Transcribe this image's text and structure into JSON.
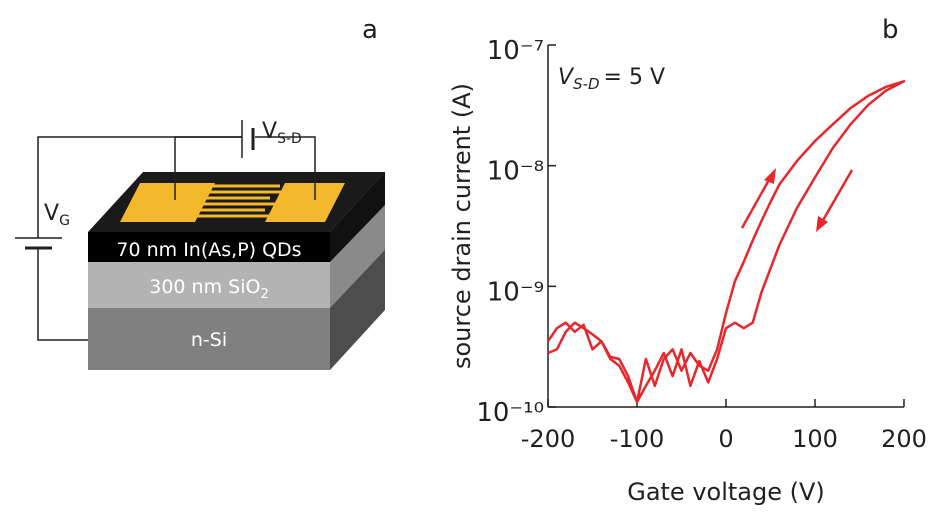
{
  "diagram": {
    "panel_label": "a",
    "vsd": {
      "main": "V",
      "sub": "S-D"
    },
    "vg": {
      "main": "V",
      "sub": "G"
    },
    "layer_qd": "70 nm In(As,P) QDs",
    "layer_oxide": {
      "main": "300 nm SiO",
      "sub": "2"
    },
    "layer_si": "n-Si"
  },
  "chart_data": {
    "type": "line",
    "panel_label": "b",
    "annotation": {
      "main": "V",
      "sub": "S-D",
      "rest": "= 5 V"
    },
    "xlabel": "Gate voltage (V)",
    "ylabel": "source drain current (A)",
    "yscale": "log",
    "color": "#e8262b",
    "xlim": [
      -200,
      200
    ],
    "xticks": [
      -200,
      -100,
      0,
      100,
      200
    ],
    "ylim": [
      1e-10,
      1e-07
    ],
    "yticks": [
      {
        "value": 1e-10,
        "label": "10⁻¹⁰"
      },
      {
        "value": 1e-09,
        "label": "10⁻⁹"
      },
      {
        "value": 1e-08,
        "label": "10⁻⁸"
      },
      {
        "value": 1e-07,
        "label": "10⁻⁷"
      }
    ],
    "x": [
      -200,
      -190,
      -180,
      -170,
      -160,
      -150,
      -140,
      -130,
      -120,
      -110,
      -100,
      -90,
      -80,
      -70,
      -60,
      -50,
      -40,
      -30,
      -20,
      -10,
      0,
      10,
      20,
      30,
      40,
      50,
      60,
      80,
      100,
      120,
      140,
      160,
      180,
      200,
      200,
      180,
      160,
      140,
      120,
      100,
      80,
      60,
      40,
      30,
      20,
      10,
      0,
      -10,
      -20,
      -30,
      -40,
      -50,
      -60,
      -70,
      -80,
      -90,
      -100,
      -110,
      -120,
      -130,
      -140,
      -150,
      -160,
      -170,
      -180,
      -190,
      -200
    ],
    "values": [
      3.5e-10,
      4.5e-10,
      5e-10,
      4.2e-10,
      4.8e-10,
      3e-10,
      3.5e-10,
      2.5e-10,
      2.2e-10,
      1.6e-10,
      1.1e-10,
      2.5e-10,
      1.5e-10,
      2.5e-10,
      3e-10,
      2e-10,
      2.8e-10,
      2.2e-10,
      2e-10,
      3e-10,
      6e-10,
      1.1e-09,
      1.6e-09,
      2.4e-09,
      3.5e-09,
      5e-09,
      7e-09,
      1.1e-08,
      1.6e-08,
      2.2e-08,
      3e-08,
      3.8e-08,
      4.5e-08,
      5e-08,
      5e-08,
      4.2e-08,
      3.2e-08,
      2.2e-08,
      1.4e-08,
      8e-09,
      4.5e-09,
      2.2e-09,
      9e-10,
      5e-10,
      4.5e-10,
      5e-10,
      4.5e-10,
      2.5e-10,
      1.6e-10,
      2.4e-10,
      1.5e-10,
      3e-10,
      1.8e-10,
      2.8e-10,
      2e-10,
      1.5e-10,
      1.1e-10,
      1.8e-10,
      2.5e-10,
      2.6e-10,
      3.5e-10,
      4e-10,
      4.5e-10,
      5e-10,
      4.2e-10,
      3e-10,
      2.8e-10
    ]
  }
}
